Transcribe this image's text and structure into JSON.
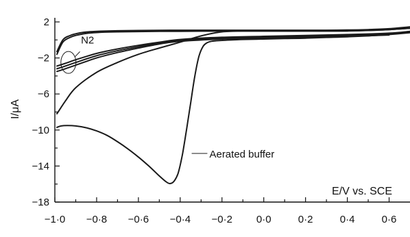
{
  "chart_data": {
    "type": "line",
    "title": "",
    "xlabel": "E/V vs. SCE",
    "ylabel": "I/μA",
    "xlim": [
      -1.0,
      0.7
    ],
    "ylim": [
      -18,
      2
    ],
    "xticks": [
      -1.0,
      -0.8,
      -0.6,
      -0.4,
      -0.2,
      0.0,
      0.2,
      0.4,
      0.6
    ],
    "xtick_labels": [
      "−1·0",
      "−0·8",
      "−0·6",
      "−0·4",
      "−0·2",
      "0·0",
      "0·2",
      "0·4",
      "0·6"
    ],
    "yticks": [
      2,
      -2,
      -6,
      -10,
      -14,
      -18
    ],
    "ytick_labels": [
      "2",
      "−2",
      "−6",
      "−10",
      "−14",
      "−18"
    ],
    "grid": false,
    "annotations": [
      {
        "text": "N2",
        "target": "N2 curves near E = −0.93 V"
      },
      {
        "text": "Aerated buffer",
        "target": "aerated-buffer reduction wave near E = −0.33 V"
      }
    ],
    "series": [
      {
        "label": "N2 forward 1",
        "x": [
          -0.99,
          -0.96,
          -0.92,
          -0.88,
          -0.84,
          -0.78,
          -0.7,
          -0.6,
          -0.5,
          -0.4,
          -0.3,
          -0.2,
          -0.1,
          0.0,
          0.1,
          0.2,
          0.3,
          0.4,
          0.5,
          0.6,
          0.7
        ],
        "y": [
          -1.6,
          -0.2,
          0.35,
          0.6,
          0.75,
          0.85,
          0.9,
          0.93,
          0.95,
          0.96,
          0.97,
          0.98,
          0.98,
          0.98,
          0.98,
          0.98,
          0.98,
          1.0,
          1.05,
          1.15,
          1.3
        ]
      },
      {
        "label": "N2 forward 2",
        "x": [
          -0.99,
          -0.96,
          -0.92,
          -0.88,
          -0.84,
          -0.78,
          -0.7,
          -0.6,
          -0.5,
          -0.4,
          -0.3,
          -0.2,
          -0.1,
          0.0,
          0.1,
          0.2,
          0.3,
          0.4,
          0.5,
          0.6,
          0.7
        ],
        "y": [
          -1.3,
          0.05,
          0.55,
          0.78,
          0.9,
          0.97,
          1.02,
          1.05,
          1.07,
          1.08,
          1.08,
          1.08,
          1.08,
          1.08,
          1.08,
          1.08,
          1.08,
          1.1,
          1.15,
          1.25,
          1.45
        ]
      },
      {
        "label": "N2 reverse 1",
        "x": [
          0.7,
          0.6,
          0.4,
          0.2,
          0.0,
          -0.2,
          -0.4,
          -0.5,
          -0.6,
          -0.7,
          -0.8,
          -0.9,
          -0.95,
          -0.99
        ],
        "y": [
          0.95,
          0.75,
          0.6,
          0.5,
          0.4,
          0.3,
          0.05,
          -0.25,
          -0.6,
          -1.0,
          -1.5,
          -2.2,
          -2.6,
          -2.9
        ]
      },
      {
        "label": "N2 reverse 2",
        "x": [
          0.7,
          0.6,
          0.4,
          0.2,
          0.0,
          -0.2,
          -0.4,
          -0.5,
          -0.6,
          -0.7,
          -0.8,
          -0.9,
          -0.95,
          -0.99
        ],
        "y": [
          0.85,
          0.65,
          0.5,
          0.4,
          0.3,
          0.2,
          -0.05,
          -0.35,
          -0.75,
          -1.2,
          -1.75,
          -2.5,
          -2.9,
          -3.2
        ]
      },
      {
        "label": "N2 reverse 3",
        "x": [
          0.6,
          0.4,
          0.2,
          0.0,
          -0.2,
          -0.4,
          -0.5,
          -0.6,
          -0.7,
          -0.8,
          -0.9,
          -0.95,
          -0.99
        ],
        "y": [
          0.55,
          0.4,
          0.3,
          0.2,
          0.1,
          -0.15,
          -0.45,
          -0.9,
          -1.4,
          -2.0,
          -2.8,
          -3.2,
          -3.5
        ]
      },
      {
        "label": "Aerated buffer",
        "x": [
          -0.99,
          -0.97,
          -0.94,
          -0.9,
          -0.85,
          -0.8,
          -0.75,
          -0.7,
          -0.65,
          -0.6,
          -0.55,
          -0.5,
          -0.47,
          -0.45,
          -0.43,
          -0.41,
          -0.39,
          -0.37,
          -0.35,
          -0.33,
          -0.31,
          -0.29,
          -0.27,
          -0.25,
          -0.23,
          -0.2,
          -0.15,
          -0.1,
          0.0,
          0.1,
          0.2,
          0.3,
          0.4,
          0.5,
          0.6,
          0.7
        ],
        "y": [
          -9.7,
          -9.55,
          -9.5,
          -9.55,
          -9.75,
          -10.1,
          -10.6,
          -11.3,
          -12.1,
          -13.0,
          -14.0,
          -15.1,
          -15.7,
          -15.95,
          -15.7,
          -14.8,
          -12.8,
          -10.0,
          -7.0,
          -4.0,
          -1.8,
          -0.7,
          -0.3,
          -0.15,
          -0.1,
          -0.05,
          0.0,
          0.05,
          0.1,
          0.15,
          0.2,
          0.28,
          0.35,
          0.45,
          0.6,
          0.8
        ]
      },
      {
        "label": "Aerated buffer return",
        "x": [
          0.7,
          0.6,
          0.4,
          0.2,
          0.0,
          -0.1,
          -0.2,
          -0.3,
          -0.4,
          -0.5,
          -0.6,
          -0.7,
          -0.8,
          -0.9,
          -0.95,
          -0.99
        ],
        "y": [
          1.3,
          1.15,
          1.0,
          0.98,
          0.98,
          0.98,
          0.9,
          0.45,
          -0.25,
          -0.9,
          -1.6,
          -2.5,
          -3.6,
          -5.3,
          -6.8,
          -8.2
        ]
      }
    ]
  }
}
